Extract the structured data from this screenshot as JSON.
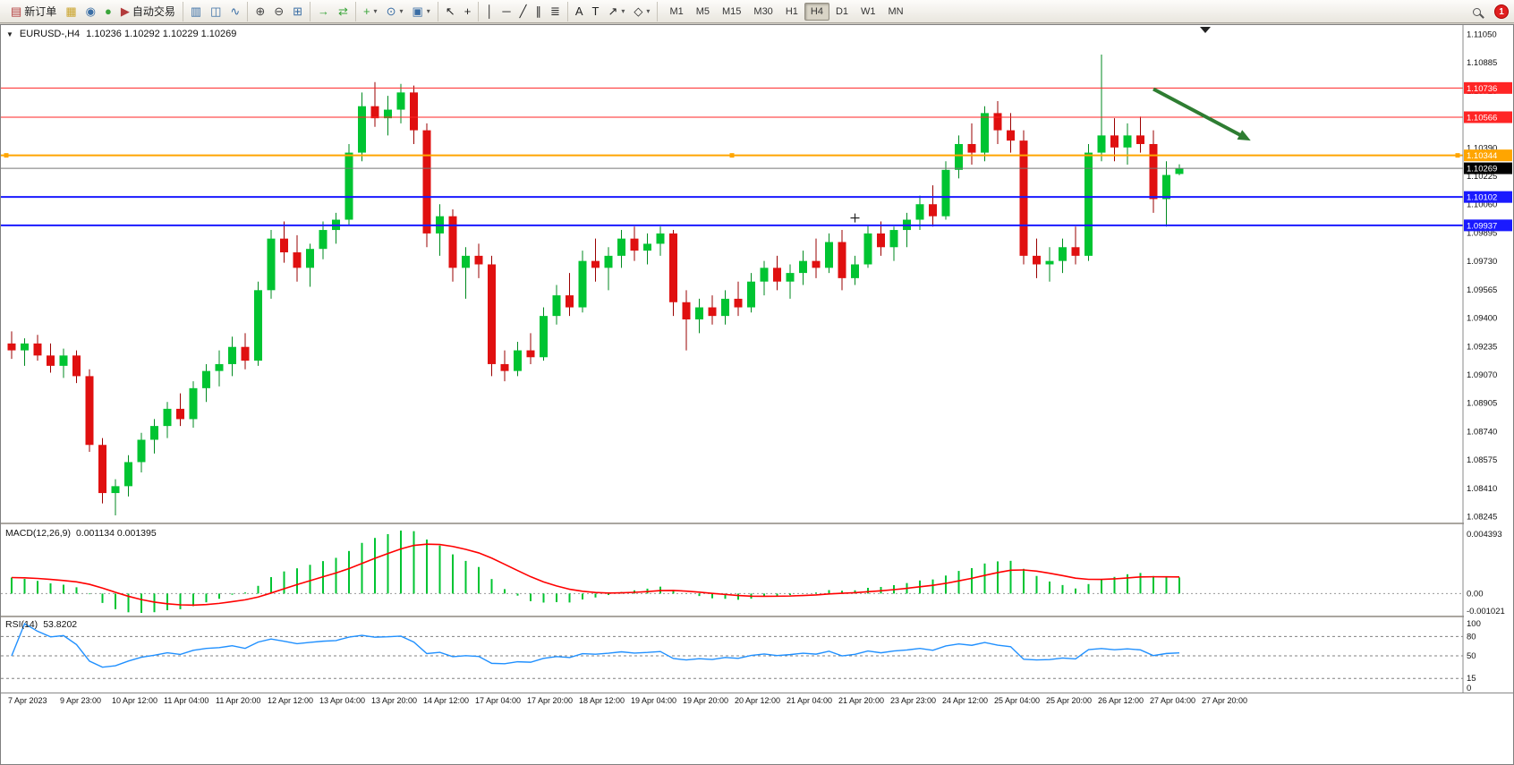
{
  "toolbar": {
    "caret_glyph": "▾",
    "badge_count": "1",
    "active_timeframe": "H4",
    "timeframes": [
      "M1",
      "M5",
      "M15",
      "M30",
      "H1",
      "H4",
      "D1",
      "W1",
      "MN"
    ],
    "groups": [
      {
        "buttons": [
          {
            "name": "new-order",
            "glyph": "▤",
            "color": "#b23b3b",
            "label": "新订单"
          },
          {
            "name": "new-chart",
            "glyph": "▦",
            "color": "#c9a227"
          },
          {
            "name": "profiles",
            "glyph": "◉",
            "color": "#3a6ea5"
          },
          {
            "name": "data-window",
            "glyph": "●",
            "color": "#3aa53a"
          },
          {
            "name": "auto-trading",
            "glyph": "▶",
            "color": "#b23b3b",
            "label": "自动交易"
          }
        ]
      },
      {
        "buttons": [
          {
            "name": "bar-chart",
            "glyph": "▥",
            "color": "#3a6ea5"
          },
          {
            "name": "candlestick-chart",
            "glyph": "◫",
            "color": "#3a6ea5"
          },
          {
            "name": "line-chart",
            "glyph": "∿",
            "color": "#3a6ea5"
          }
        ]
      },
      {
        "buttons": [
          {
            "name": "zoom-in",
            "glyph": "⊕",
            "color": "#444444"
          },
          {
            "name": "zoom-out",
            "glyph": "⊖",
            "color": "#444444"
          },
          {
            "name": "tile-windows",
            "glyph": "⊞",
            "color": "#3a6ea5"
          }
        ]
      },
      {
        "buttons": [
          {
            "name": "chart-shift",
            "glyph": "→",
            "color": "#3aa53a"
          },
          {
            "name": "auto-scroll",
            "glyph": "⇄",
            "color": "#3aa53a"
          }
        ]
      },
      {
        "buttons": [
          {
            "name": "indicators",
            "glyph": "+",
            "color": "#3aa53a",
            "caret": true
          },
          {
            "name": "periods",
            "glyph": "⊙",
            "color": "#3a6ea5",
            "caret": true
          },
          {
            "name": "templates",
            "glyph": "▣",
            "color": "#3a6ea5",
            "caret": true
          }
        ]
      },
      {
        "buttons": [
          {
            "name": "cursor",
            "glyph": "↖",
            "color": "#222222"
          },
          {
            "name": "crosshair",
            "glyph": "+",
            "color": "#222222"
          }
        ]
      },
      {
        "buttons": [
          {
            "name": "vertical-line",
            "glyph": "│",
            "color": "#222222"
          },
          {
            "name": "horizontal-line",
            "glyph": "─",
            "color": "#222222"
          },
          {
            "name": "trendline",
            "glyph": "╱",
            "color": "#222222"
          },
          {
            "name": "equidistant-channel",
            "glyph": "∥",
            "color": "#222222"
          },
          {
            "name": "fibonacci",
            "glyph": "≣",
            "color": "#222222"
          }
        ]
      },
      {
        "buttons": [
          {
            "name": "text",
            "glyph": "A",
            "color": "#222222"
          },
          {
            "name": "text-label",
            "glyph": "T",
            "color": "#222222"
          },
          {
            "name": "arrows",
            "glyph": "↗",
            "color": "#222222",
            "caret": true
          },
          {
            "name": "shapes",
            "glyph": "◇",
            "color": "#222222",
            "caret": true
          }
        ]
      }
    ]
  },
  "chart": {
    "symbol_period": "EURUSD-,H4",
    "ohlc": "1.10236 1.10292 1.10229 1.10269",
    "dropdown_glyph": "▼"
  },
  "chart_data": {
    "type": "candlestick",
    "symbol": "EURUSD-",
    "timeframe": "H4",
    "colors": {
      "bull": "#00c432",
      "bull_wick": "#008a20",
      "bear": "#e01010",
      "bear_wick": "#9a0000"
    },
    "price_axis": [
      "1.11050",
      "1.10885",
      "1.10720",
      "1.10555",
      "1.10390",
      "1.10225",
      "1.10060",
      "1.09895",
      "1.09730",
      "1.09565",
      "1.09400",
      "1.09235",
      "1.09070",
      "1.08905",
      "1.08740",
      "1.08575",
      "1.08410",
      "1.08245"
    ],
    "x_labels": [
      "7 Apr 2023",
      "9 Apr 23:00",
      "10 Apr 12:00",
      "11 Apr 04:00",
      "11 Apr 20:00",
      "12 Apr 12:00",
      "13 Apr 04:00",
      "13 Apr 20:00",
      "14 Apr 12:00",
      "17 Apr 04:00",
      "17 Apr 20:00",
      "18 Apr 12:00",
      "19 Apr 04:00",
      "19 Apr 20:00",
      "20 Apr 12:00",
      "21 Apr 04:00",
      "21 Apr 20:00",
      "23 Apr 23:00",
      "24 Apr 12:00",
      "25 Apr 04:00",
      "25 Apr 20:00",
      "26 Apr 12:00",
      "27 Apr 04:00",
      "27 Apr 20:00"
    ],
    "hlines": [
      {
        "label": "1.10736",
        "price": 1.10736,
        "color": "#ff2525",
        "width": 1,
        "role": "resistance"
      },
      {
        "label": "1.10566",
        "price": 1.10566,
        "color": "#ff2525",
        "width": 1,
        "role": "resistance"
      },
      {
        "label": "1.10344",
        "price": 1.10344,
        "color": "#ffa500",
        "width": 2,
        "role": "pivot",
        "handles": true
      },
      {
        "label": "1.10102",
        "price": 1.10102,
        "color": "#1a1aff",
        "width": 2,
        "role": "support"
      },
      {
        "label": "1.09937",
        "price": 1.09937,
        "color": "#1a1aff",
        "width": 2,
        "role": "support"
      }
    ],
    "bid": {
      "label": "1.10269",
      "price": 1.10269,
      "badge_color": "#000000",
      "line_color": "#777777"
    },
    "arrow": {
      "from_i": 88,
      "from_price": 1.1073,
      "to_i": 95.5,
      "to_price": 1.1043,
      "color": "#2e7d32"
    },
    "plus_marker": {
      "i": 65,
      "price": 1.0998
    },
    "candles": [
      [
        1.0925,
        1.0932,
        1.0916,
        1.0921
      ],
      [
        1.0921,
        1.0928,
        1.0912,
        1.0925
      ],
      [
        1.0925,
        1.093,
        1.0915,
        1.0918
      ],
      [
        1.0918,
        1.0925,
        1.0908,
        1.0912
      ],
      [
        1.0912,
        1.0922,
        1.0905,
        1.0918
      ],
      [
        1.0918,
        1.0921,
        1.0902,
        1.0906
      ],
      [
        1.0906,
        1.091,
        1.0862,
        1.0866
      ],
      [
        1.0866,
        1.087,
        1.0832,
        1.0838
      ],
      [
        1.0838,
        1.0846,
        1.0825,
        1.0842
      ],
      [
        1.0842,
        1.086,
        1.0836,
        1.0856
      ],
      [
        1.0856,
        1.0873,
        1.085,
        1.0869
      ],
      [
        1.0869,
        1.0881,
        1.0861,
        1.0877
      ],
      [
        1.0877,
        1.0891,
        1.087,
        1.0887
      ],
      [
        1.0887,
        1.0896,
        1.0877,
        1.0881
      ],
      [
        1.0881,
        1.0903,
        1.0876,
        1.0899
      ],
      [
        1.0899,
        1.0913,
        1.0891,
        1.0909
      ],
      [
        1.0909,
        1.0921,
        1.09,
        1.0913
      ],
      [
        1.0913,
        1.0929,
        1.0906,
        1.0923
      ],
      [
        1.0923,
        1.0931,
        1.091,
        1.0915
      ],
      [
        1.0915,
        1.0961,
        1.0912,
        1.0956
      ],
      [
        1.0956,
        1.0991,
        1.0951,
        1.0986
      ],
      [
        1.0986,
        1.0996,
        1.0972,
        1.0978
      ],
      [
        1.0978,
        1.0988,
        1.0961,
        1.0969
      ],
      [
        1.0969,
        1.0983,
        1.0958,
        1.098
      ],
      [
        1.098,
        1.0996,
        1.0974,
        1.0991
      ],
      [
        1.0991,
        1.1001,
        1.0983,
        1.0997
      ],
      [
        1.0997,
        1.1041,
        1.0994,
        1.1036
      ],
      [
        1.1036,
        1.1071,
        1.1031,
        1.1063
      ],
      [
        1.1063,
        1.1077,
        1.1051,
        1.1056
      ],
      [
        1.1056,
        1.1069,
        1.1046,
        1.1061
      ],
      [
        1.1061,
        1.1076,
        1.1053,
        1.1071
      ],
      [
        1.1071,
        1.1075,
        1.1041,
        1.1049
      ],
      [
        1.1049,
        1.1053,
        1.0981,
        1.0989
      ],
      [
        1.0989,
        1.1006,
        1.0976,
        1.0999
      ],
      [
        1.0999,
        1.1003,
        1.0961,
        1.0969
      ],
      [
        1.0969,
        1.0981,
        1.0951,
        1.0976
      ],
      [
        1.0976,
        1.0983,
        1.0963,
        1.0971
      ],
      [
        1.0971,
        1.0976,
        1.0906,
        1.0913
      ],
      [
        1.0913,
        1.0921,
        1.0903,
        1.0909
      ],
      [
        1.0909,
        1.0926,
        1.0906,
        1.0921
      ],
      [
        1.0921,
        1.0931,
        1.0913,
        1.0917
      ],
      [
        1.0917,
        1.0946,
        1.0915,
        1.0941
      ],
      [
        1.0941,
        1.0959,
        1.0936,
        1.0953
      ],
      [
        1.0953,
        1.0966,
        1.0941,
        1.0946
      ],
      [
        1.0946,
        1.0979,
        1.0943,
        1.0973
      ],
      [
        1.0973,
        1.0986,
        1.0961,
        1.0969
      ],
      [
        1.0969,
        1.0981,
        1.0956,
        1.0976
      ],
      [
        1.0976,
        1.0991,
        1.0969,
        1.0986
      ],
      [
        1.0986,
        1.0993,
        1.0973,
        1.0979
      ],
      [
        1.0979,
        1.0989,
        1.0971,
        1.0983
      ],
      [
        1.0983,
        1.0993,
        1.0976,
        1.0989
      ],
      [
        1.0989,
        1.0991,
        1.0941,
        1.0949
      ],
      [
        1.0949,
        1.0956,
        1.0921,
        1.0939
      ],
      [
        1.0939,
        1.0951,
        1.0931,
        1.0946
      ],
      [
        1.0946,
        1.0953,
        1.0936,
        1.0941
      ],
      [
        1.0941,
        1.0956,
        1.0936,
        1.0951
      ],
      [
        1.0951,
        1.0961,
        1.0941,
        1.0946
      ],
      [
        1.0946,
        1.0966,
        1.0943,
        1.0961
      ],
      [
        1.0961,
        1.0973,
        1.0953,
        1.0969
      ],
      [
        1.0969,
        1.0976,
        1.0956,
        1.0961
      ],
      [
        1.0961,
        1.0971,
        1.0951,
        1.0966
      ],
      [
        1.0966,
        1.0979,
        1.0959,
        1.0973
      ],
      [
        1.0973,
        1.0986,
        1.0963,
        1.0969
      ],
      [
        1.0969,
        1.0989,
        1.0966,
        1.0984
      ],
      [
        1.0984,
        1.0991,
        1.0956,
        1.0963
      ],
      [
        1.0963,
        1.0976,
        1.0959,
        1.0971
      ],
      [
        1.0971,
        1.0994,
        1.0969,
        1.0989
      ],
      [
        1.0989,
        1.0996,
        1.0976,
        1.0981
      ],
      [
        1.0981,
        1.0993,
        1.0973,
        1.0991
      ],
      [
        1.0991,
        1.1001,
        1.0981,
        1.0997
      ],
      [
        1.0997,
        1.1011,
        1.0991,
        1.1006
      ],
      [
        1.1006,
        1.1017,
        1.0993,
        1.0999
      ],
      [
        1.0999,
        1.1031,
        1.0997,
        1.1026
      ],
      [
        1.1026,
        1.1046,
        1.1021,
        1.1041
      ],
      [
        1.1041,
        1.1053,
        1.1029,
        1.1036
      ],
      [
        1.1036,
        1.1063,
        1.1031,
        1.1059
      ],
      [
        1.1059,
        1.1066,
        1.1041,
        1.1049
      ],
      [
        1.1049,
        1.1059,
        1.1036,
        1.1043
      ],
      [
        1.1043,
        1.1049,
        1.0971,
        1.0976
      ],
      [
        1.0976,
        1.0986,
        1.0963,
        1.0971
      ],
      [
        1.0971,
        1.0981,
        1.0961,
        1.0973
      ],
      [
        1.0973,
        1.0986,
        1.0966,
        1.0981
      ],
      [
        1.0981,
        1.0993,
        1.0971,
        1.0976
      ],
      [
        1.0976,
        1.1041,
        1.0973,
        1.1036
      ],
      [
        1.1036,
        1.1093,
        1.1031,
        1.1046
      ],
      [
        1.1046,
        1.1056,
        1.1031,
        1.1039
      ],
      [
        1.1039,
        1.1053,
        1.1029,
        1.1046
      ],
      [
        1.1046,
        1.1057,
        1.1036,
        1.1041
      ],
      [
        1.1041,
        1.1049,
        1.1001,
        1.1009
      ],
      [
        1.1009,
        1.1031,
        1.0993,
        1.1023
      ],
      [
        1.10236,
        1.10292,
        1.10229,
        1.10269
      ]
    ],
    "macd": {
      "label": "MACD(12,26,9)",
      "values": "0.001134 0.001395",
      "fast": 12,
      "slow": 26,
      "signal": 9,
      "axis": [
        "0.004393",
        "0.00",
        "-0.001021"
      ],
      "histogram_color": "#00c432",
      "signal_color": "#ff0000"
    },
    "rsi": {
      "label": "RSI(14)",
      "value": "53.8202",
      "period": 14,
      "levels": [
        80,
        50,
        15
      ],
      "axis": [
        "100",
        "80",
        "50",
        "15",
        "0"
      ],
      "line_color": "#2090ff"
    }
  }
}
